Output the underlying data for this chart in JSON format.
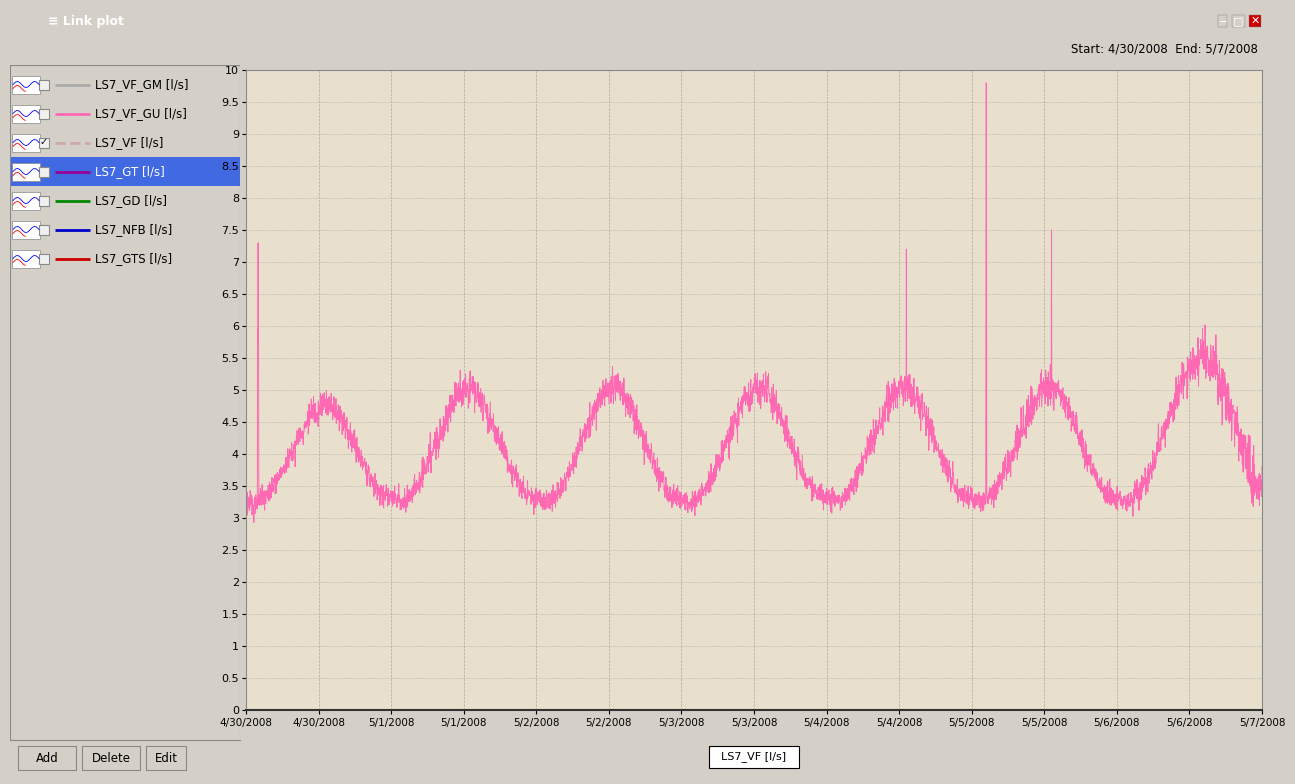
{
  "title": "Link plot",
  "start_end_label": "Start: 4/30/2008  End: 5/7/2008",
  "legend_label": "LS7_VF [l/s]",
  "sidebar_items": [
    {
      "name": "LS7_VF_GM [l/s]",
      "line_color": "#aaaaaa",
      "checked": false,
      "style": "solid"
    },
    {
      "name": "LS7_VF_GU [l/s]",
      "line_color": "#ff69b4",
      "checked": false,
      "style": "solid"
    },
    {
      "name": "LS7_VF [l/s]",
      "line_color": "#ccaaaa",
      "checked": true,
      "style": "solid"
    },
    {
      "name": "LS7_GT [l/s]",
      "line_color": "#990099",
      "checked": false,
      "style": "solid",
      "selected": true
    },
    {
      "name": "LS7_GD [l/s]",
      "line_color": "#008800",
      "checked": false,
      "style": "solid"
    },
    {
      "name": "LS7_NFB [l/s]",
      "line_color": "#0000cc",
      "checked": false,
      "style": "solid"
    },
    {
      "name": "LS7_GTS [l/s]",
      "line_color": "#cc0000",
      "checked": false,
      "style": "solid"
    }
  ],
  "plot_bg_color": "#e8e0cc",
  "line_color": "#ff69b4",
  "line_width": 0.7,
  "ylim": [
    0,
    10
  ],
  "yticks": [
    0,
    0.5,
    1,
    1.5,
    2,
    2.5,
    3,
    3.5,
    4,
    4.5,
    5,
    5.5,
    6,
    6.5,
    7,
    7.5,
    8,
    8.5,
    9,
    9.5,
    10
  ],
  "grid_color": "#888888",
  "window_bg": "#d4d0c8",
  "titlebar_color": "#0040c0",
  "toolbar_bg": "#d4d0c8",
  "sidebar_bg": "#ffffff",
  "selected_bg": "#4169e1",
  "selected_fg": "#ffffff",
  "x_labels": [
    "4/30/2008",
    "4/30/2008",
    "5/1/2008",
    "5/1/2008",
    "5/2/2008",
    "5/2/2008",
    "5/3/2008",
    "5/3/2008",
    "5/4/2008",
    "5/4/2008",
    "5/5/2008",
    "5/5/2008",
    "5/6/2008",
    "5/6/2008",
    "5/7/2008"
  ]
}
